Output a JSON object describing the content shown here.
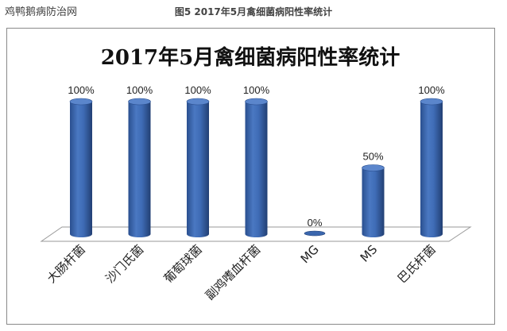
{
  "header": {
    "watermark": "鸡鸭鹅病防治网",
    "caption": "图5 2017年5月禽细菌病阳性率统计"
  },
  "chart_data": {
    "type": "bar",
    "title": "2017年5月禽细菌病阳性率统计",
    "categories": [
      "大肠杆菌",
      "沙门氏菌",
      "葡萄球菌",
      "副鸡嗜血杆菌",
      "MG",
      "MS",
      "巴氏杆菌"
    ],
    "values": [
      100,
      100,
      100,
      100,
      0,
      50,
      100
    ],
    "data_labels": [
      "100%",
      "100%",
      "100%",
      "100%",
      "0%",
      "50%",
      "100%"
    ],
    "ylim": [
      0,
      100
    ],
    "grid": false,
    "legend": "none",
    "bar_color": "#3a66ad",
    "bar_top_color": "#5b86cc",
    "floor_color": "#ffffff",
    "floor_stroke": "#9a9a9a"
  }
}
